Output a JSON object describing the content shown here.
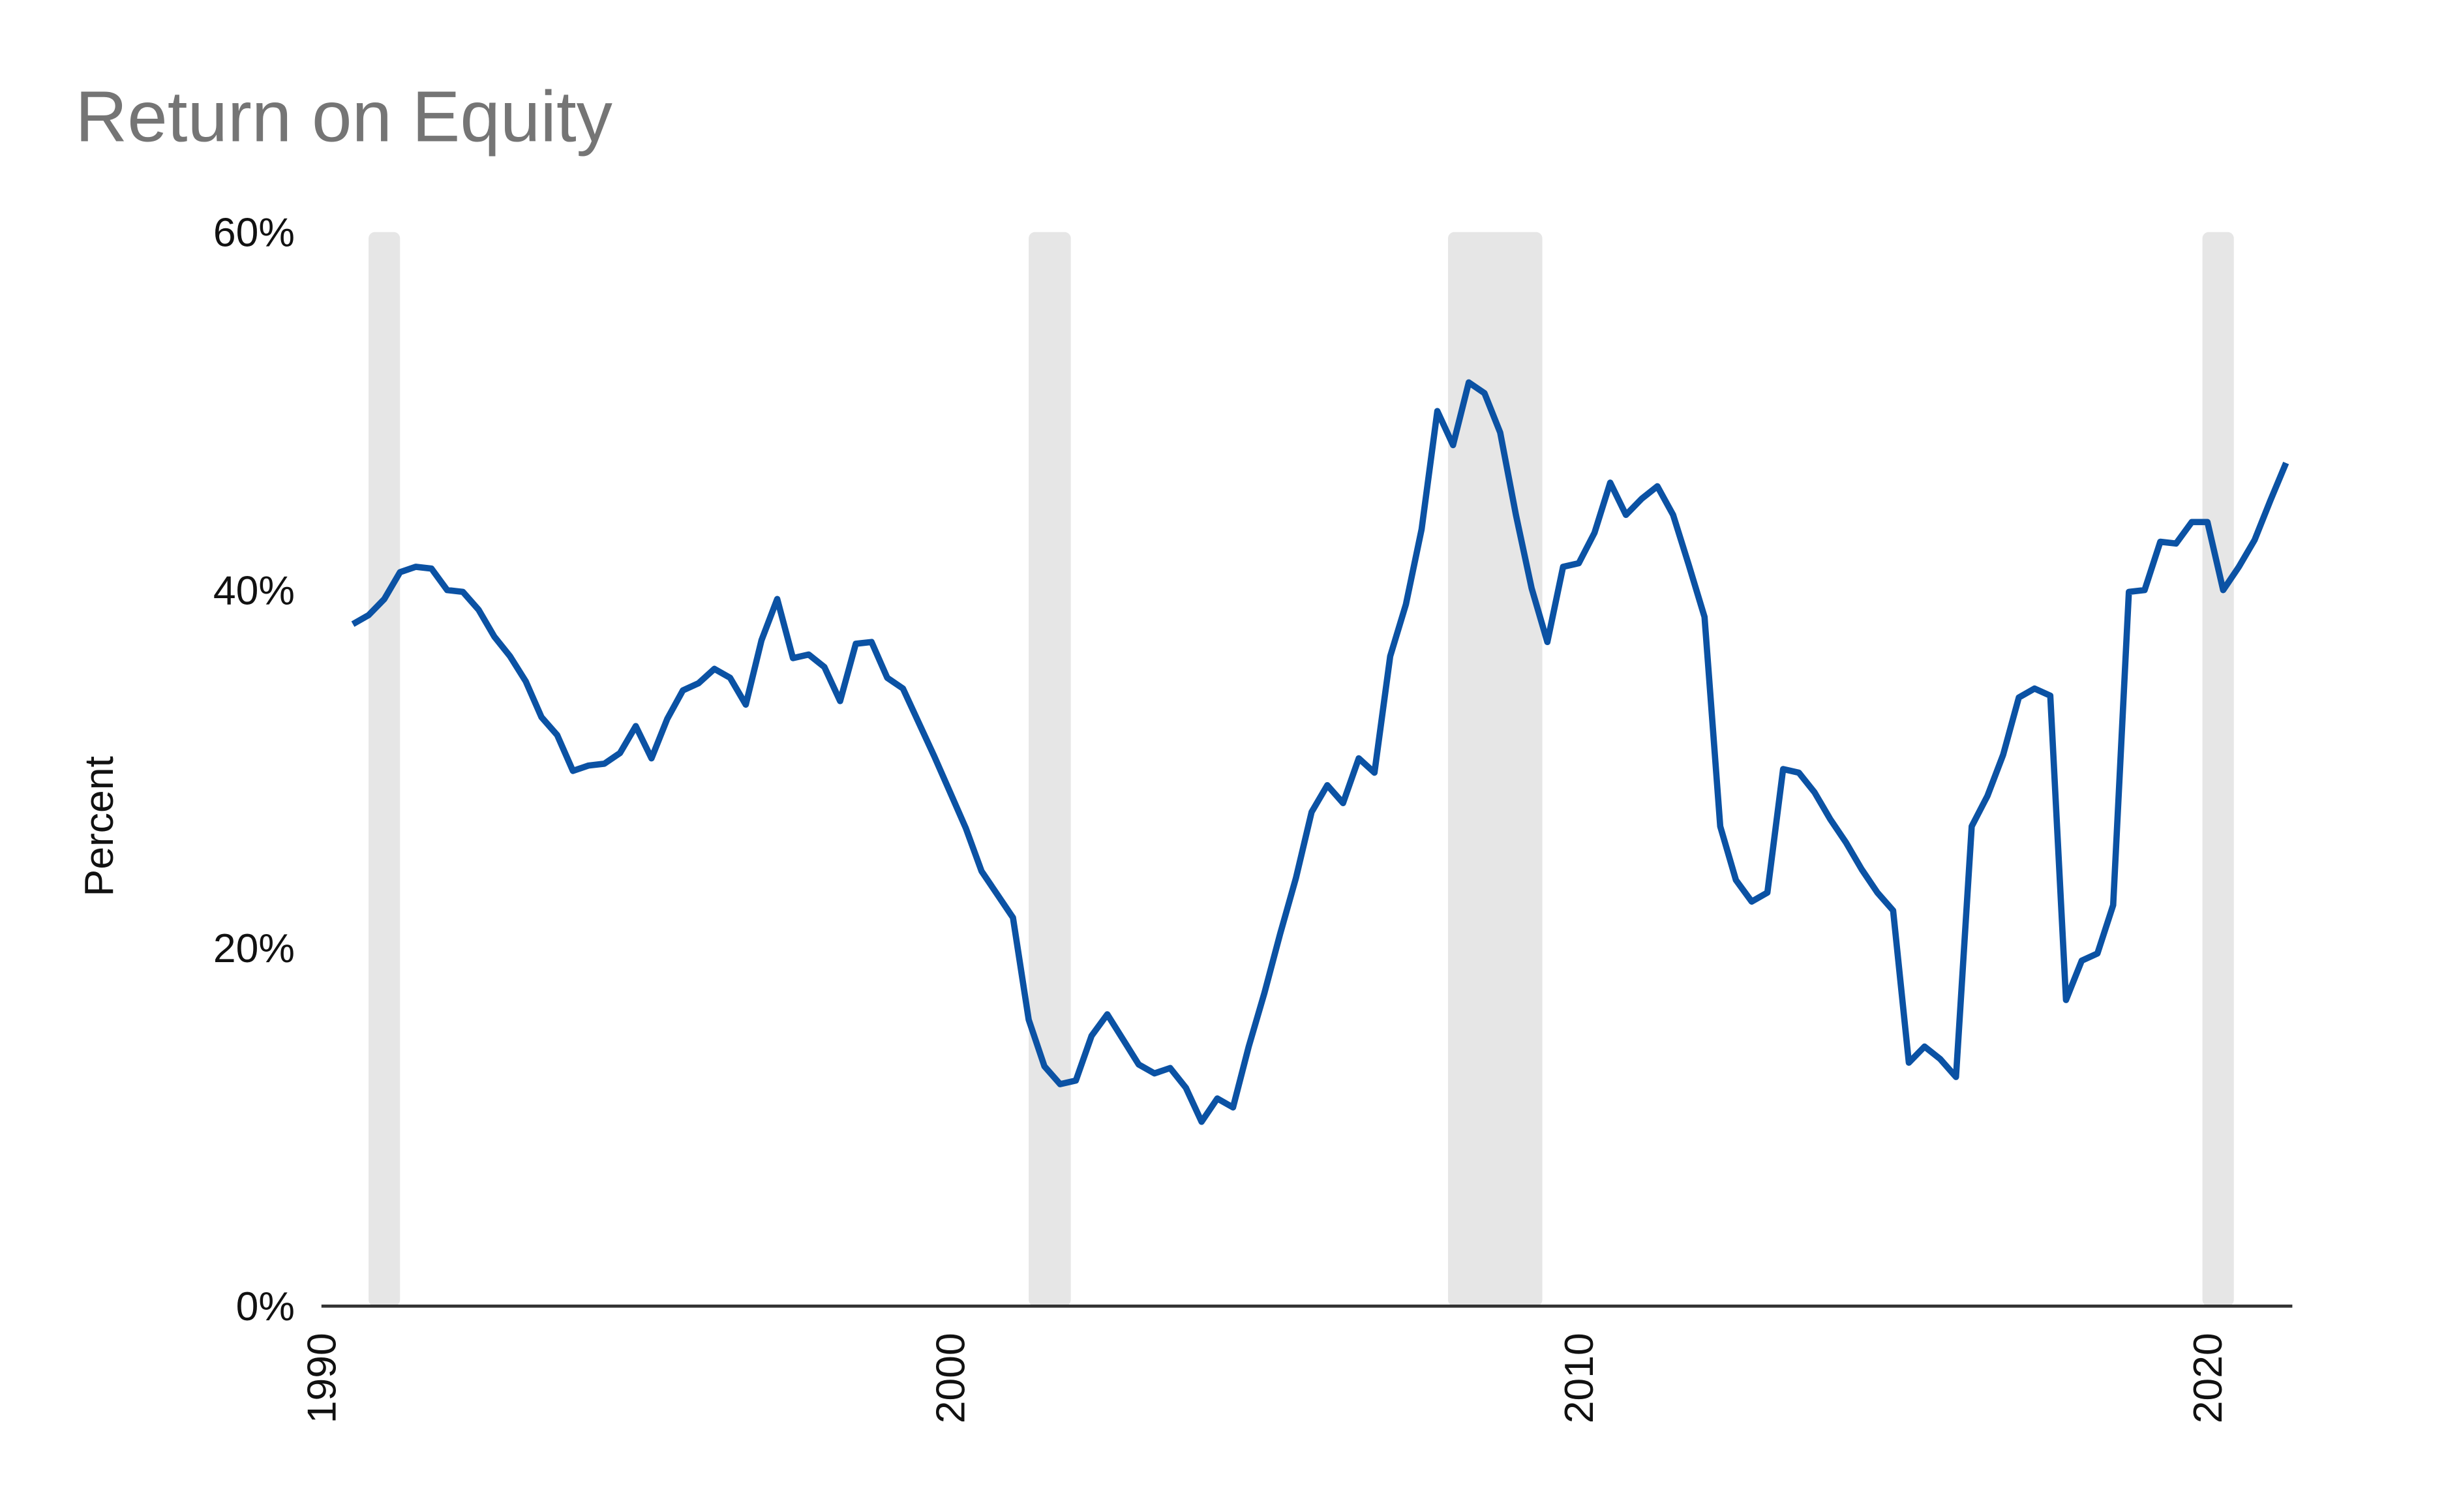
{
  "chart_data": {
    "type": "line",
    "title": "Return on Equity",
    "ylabel": "Percent",
    "x": [
      1990.5,
      1990.75,
      1991,
      1991.25,
      1991.5,
      1991.75,
      1992,
      1992.25,
      1992.5,
      1992.75,
      1993,
      1993.25,
      1993.5,
      1993.75,
      1994,
      1994.25,
      1994.5,
      1994.75,
      1995,
      1995.25,
      1995.5,
      1995.75,
      1996,
      1996.25,
      1996.5,
      1996.75,
      1997,
      1997.25,
      1997.5,
      1997.75,
      1998,
      1998.25,
      1998.5,
      1998.75,
      1999,
      1999.25,
      1999.5,
      1999.75,
      2000,
      2000.25,
      2000.5,
      2000.75,
      2001,
      2001.25,
      2001.5,
      2001.75,
      2002,
      2002.25,
      2002.5,
      2002.75,
      2003,
      2003.25,
      2003.5,
      2003.75,
      2004,
      2004.25,
      2004.5,
      2004.75,
      2005,
      2005.25,
      2005.5,
      2005.75,
      2006,
      2006.25,
      2006.5,
      2006.75,
      2007,
      2007.25,
      2007.5,
      2007.75,
      2008,
      2008.25,
      2008.5,
      2008.75,
      2009,
      2009.25,
      2009.5,
      2009.75,
      2010,
      2010.25,
      2010.5,
      2010.75,
      2011,
      2011.25,
      2011.5,
      2011.75,
      2012,
      2012.25,
      2012.5,
      2012.75,
      2013,
      2013.25,
      2013.5,
      2013.75,
      2014,
      2014.25,
      2014.5,
      2014.75,
      2015,
      2015.25,
      2015.5,
      2015.75,
      2016,
      2016.25,
      2016.5,
      2016.75,
      2017,
      2017.25,
      2017.5,
      2017.75,
      2018,
      2018.25,
      2018.5,
      2018.75,
      2019,
      2019.25,
      2019.5,
      2019.75,
      2020,
      2020.25,
      2020.5,
      2020.75,
      2021,
      2021.25
    ],
    "values": [
      38.1,
      38.6,
      39.5,
      41.0,
      41.3,
      41.2,
      40.0,
      39.9,
      38.9,
      37.4,
      36.3,
      34.9,
      32.9,
      31.9,
      29.9,
      30.2,
      30.3,
      30.9,
      32.4,
      30.6,
      32.8,
      34.4,
      34.8,
      35.6,
      35.1,
      33.6,
      37.2,
      39.5,
      36.2,
      36.4,
      35.7,
      33.8,
      37.0,
      37.1,
      35.1,
      34.5,
      32.6,
      30.7,
      28.7,
      26.7,
      24.3,
      23.0,
      21.7,
      16.0,
      13.4,
      12.4,
      12.6,
      15.1,
      16.3,
      14.9,
      13.5,
      13.0,
      13.3,
      12.2,
      10.3,
      11.6,
      11.1,
      14.5,
      17.5,
      20.8,
      23.9,
      27.6,
      29.1,
      28.1,
      30.6,
      29.8,
      36.3,
      39.2,
      43.4,
      50.0,
      48.1,
      51.6,
      51.0,
      48.8,
      44.2,
      40.1,
      37.1,
      41.3,
      41.5,
      43.2,
      46.0,
      44.2,
      45.1,
      45.8,
      44.2,
      41.4,
      38.5,
      26.8,
      23.8,
      22.6,
      23.1,
      30.0,
      29.8,
      28.7,
      27.2,
      25.9,
      24.4,
      23.1,
      22.1,
      13.6,
      14.5,
      13.8,
      12.8,
      26.8,
      28.5,
      30.8,
      34.0,
      34.5,
      34.1,
      17.1,
      19.3,
      19.7,
      22.4,
      39.9,
      40.0,
      42.7,
      42.6,
      43.8,
      43.8,
      40.0,
      41.3,
      42.8,
      45.0,
      47.1
    ],
    "color": "#0b52a4",
    "recessions": [
      [
        1990.75,
        1991.25
      ],
      [
        2001.25,
        2001.92
      ],
      [
        2007.92,
        2009.42
      ],
      [
        2019.92,
        2020.42
      ]
    ],
    "recession_color": "#e6e6e6",
    "xlim": [
      1990,
      2021.35
    ],
    "xticks": [
      1990,
      2000,
      2010,
      2020
    ],
    "ylim": [
      0,
      60
    ],
    "yticks": [
      {
        "value": 0,
        "label": "0%"
      },
      {
        "value": 20,
        "label": "20%"
      },
      {
        "value": 40,
        "label": "40%"
      },
      {
        "value": 60,
        "label": "60%"
      }
    ],
    "grid": false
  }
}
